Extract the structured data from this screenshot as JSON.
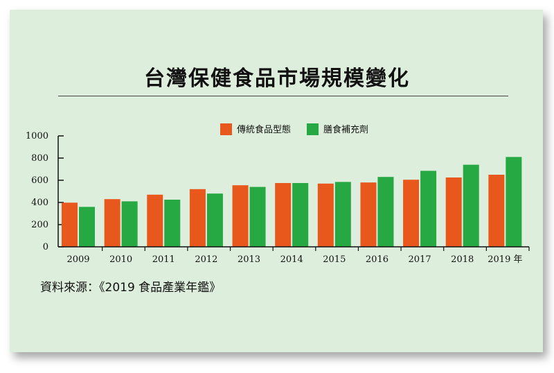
{
  "source_text": "資料來源：《2019 食品產業年鑑》",
  "chart_data": {
    "type": "bar",
    "title": "台灣保健食品市場規模變化",
    "categories": [
      "2009",
      "2010",
      "2011",
      "2012",
      "2013",
      "2014",
      "2015",
      "2016",
      "2017",
      "2018",
      "2019 年"
    ],
    "series": [
      {
        "name": "傳統食品型態",
        "color": "#e8581c",
        "values": [
          398,
          430,
          470,
          520,
          555,
          575,
          570,
          580,
          605,
          625,
          650
        ]
      },
      {
        "name": "膳食補充劑",
        "color": "#26a843",
        "values": [
          360,
          410,
          425,
          480,
          540,
          575,
          585,
          630,
          685,
          740,
          810
        ]
      }
    ],
    "yticks": [
      0,
      200,
      400,
      600,
      800,
      1000
    ],
    "ylim": [
      0,
      1000
    ],
    "xlabel": "",
    "ylabel": "",
    "grid": false,
    "legend": "top-center"
  }
}
